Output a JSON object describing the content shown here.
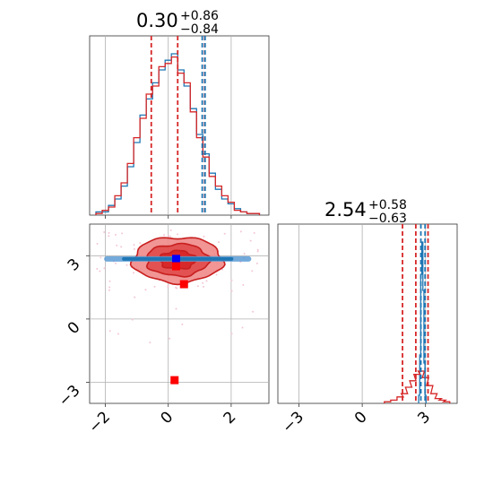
{
  "chart_data": [
    {
      "type": "histogram",
      "panel": "top-left",
      "title": {
        "value": "0.30",
        "plus": "+0.86",
        "minus": "−0.84"
      },
      "xlim": [
        -2.5,
        3.2
      ],
      "xticks": [
        -2,
        0,
        2
      ],
      "quantile_lines": {
        "red": [
          -0.54,
          0.3,
          1.16
        ],
        "blue": [
          1.08,
          1.17
        ]
      },
      "series": [
        {
          "name": "",
          "color": "#1f77b4",
          "x": [
            -2.2,
            -2.0,
            -1.8,
            -1.6,
            -1.4,
            -1.2,
            -1.0,
            -0.8,
            -0.6,
            -0.4,
            -0.2,
            0.0,
            0.2,
            0.4,
            0.6,
            0.8,
            1.0,
            1.2,
            1.4,
            1.6,
            1.8,
            2.0,
            2.2,
            2.4,
            2.6,
            2.8
          ],
          "values": [
            2,
            2,
            6,
            10,
            18,
            30,
            45,
            62,
            72,
            82,
            90,
            96,
            100,
            90,
            80,
            66,
            50,
            38,
            26,
            16,
            10,
            7,
            4,
            2,
            1,
            1
          ]
        },
        {
          "name": "",
          "color": "#d62728",
          "x": [
            -2.2,
            -2.0,
            -1.8,
            -1.6,
            -1.4,
            -1.2,
            -1.0,
            -0.8,
            -0.6,
            -0.4,
            -0.2,
            0.0,
            0.2,
            0.4,
            0.6,
            0.8,
            1.0,
            1.2,
            1.4,
            1.6,
            1.8,
            2.0,
            2.2,
            2.4,
            2.6,
            2.8
          ],
          "values": [
            1,
            3,
            5,
            12,
            20,
            32,
            48,
            60,
            75,
            80,
            92,
            94,
            98,
            88,
            82,
            64,
            48,
            36,
            24,
            18,
            12,
            8,
            3,
            2,
            1,
            1
          ]
        }
      ]
    },
    {
      "type": "contour",
      "panel": "bottom-left",
      "xlim": [
        -2.5,
        3.2
      ],
      "ylim": [
        -4.0,
        4.5
      ],
      "xticks": [
        -2,
        0,
        2
      ],
      "yticks": [
        -3,
        0,
        3
      ],
      "series": [
        {
          "name": "",
          "color": "#d62728",
          "center": [
            0.3,
            2.8
          ],
          "spread": [
            0.84,
            0.6
          ]
        },
        {
          "name": "",
          "color": "#1f77b4",
          "center": [
            0.3,
            2.85
          ],
          "spread": [
            0.9,
            0.06
          ]
        }
      ],
      "markers": [
        {
          "color": "#0000ff",
          "x": 0.25,
          "y": 2.85
        },
        {
          "color": "#ff0000",
          "x": 0.25,
          "y": 2.5
        },
        {
          "color": "#ff0000",
          "x": 0.5,
          "y": 1.65
        },
        {
          "color": "#ff0000",
          "x": 0.2,
          "y": -2.9
        }
      ]
    },
    {
      "type": "histogram",
      "panel": "bottom-right",
      "title": {
        "value": "2.54",
        "plus": "+0.58",
        "minus": "−0.63"
      },
      "xlim": [
        -4.0,
        4.5
      ],
      "xticks": [
        -3,
        0,
        3
      ],
      "quantile_lines": {
        "red": [
          1.91,
          2.54,
          3.12
        ],
        "blue": [
          2.78,
          2.98
        ]
      },
      "series": [
        {
          "name": "",
          "color": "#1f77b4",
          "x": [
            2.7,
            2.75,
            2.8,
            2.85,
            2.9,
            2.95,
            3.0
          ],
          "values": [
            5,
            30,
            80,
            100,
            70,
            25,
            5
          ]
        },
        {
          "name": "",
          "color": "#d62728",
          "x": [
            1.2,
            1.5,
            1.8,
            2.0,
            2.2,
            2.4,
            2.6,
            2.8,
            3.0,
            3.2,
            3.4,
            3.6,
            3.8,
            4.0
          ],
          "values": [
            1,
            2,
            4,
            6,
            10,
            14,
            18,
            20,
            16,
            11,
            6,
            3,
            2,
            1
          ]
        }
      ]
    }
  ]
}
